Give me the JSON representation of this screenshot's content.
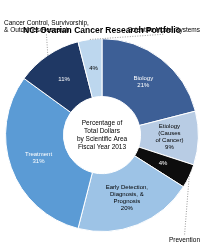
{
  "chart_data": {
    "type": "doughnut",
    "title": "NCI Ovarian Cancer Research Portfolio",
    "center_text": "Percentage of\nTotal Dollars\nby Scientific Area\nFiscal Year 2013",
    "values": [
      21,
      9,
      4,
      20,
      31,
      11,
      4
    ],
    "value_labels": [
      "Biology\n21%",
      "Etiology\n(Causes\nof Cancer)\n9%",
      "4%",
      "Early Detection,\nDiagnosis, &\nPrognosis\n20%",
      "Treatment\n31%",
      "11%",
      "4%"
    ],
    "colors": [
      "#3d5f96",
      "#b8cce4",
      "#0d0d0d",
      "#9dc3e6",
      "#5b9bd5",
      "#1f3864",
      "#bdd7ee"
    ],
    "data_labels": true,
    "annotations": [
      {
        "text": "Cancer Control, Survivorship,\n& Outcomes Research",
        "slice": 5
      },
      {
        "text": "Scientific Model Systems",
        "slice": 6
      },
      {
        "text": "Prevention",
        "slice": 2
      }
    ]
  }
}
